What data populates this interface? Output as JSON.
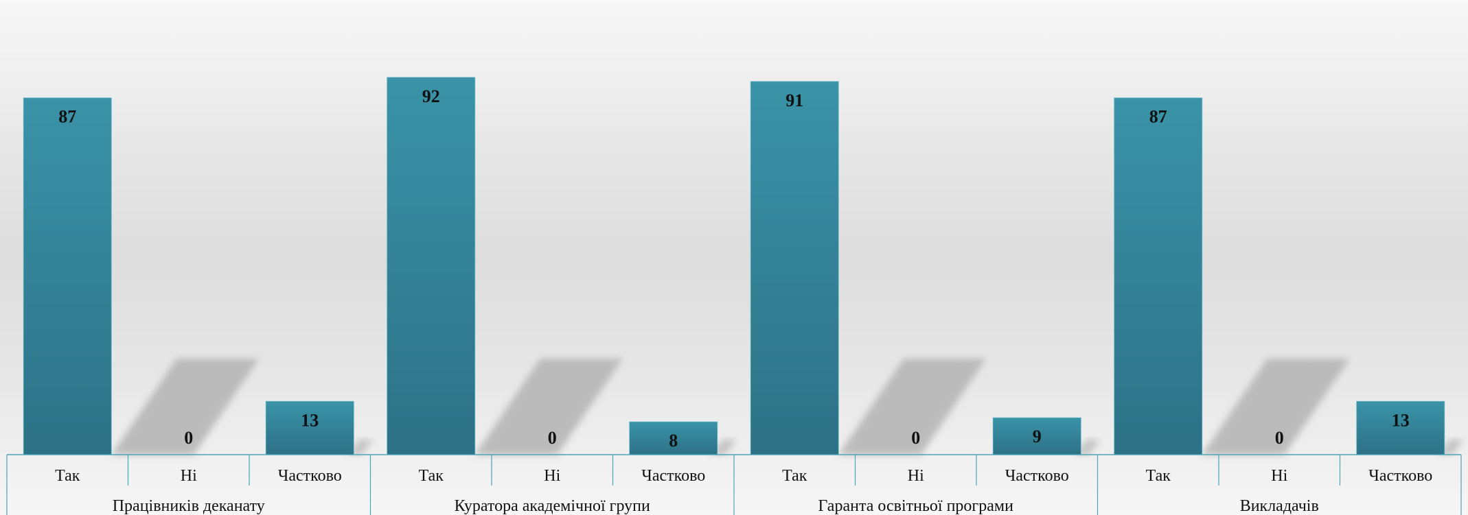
{
  "chart_data": {
    "type": "bar",
    "groups": [
      {
        "label": "Працівників деканату",
        "categories": [
          "Так",
          "Ні",
          "Частково"
        ],
        "values": [
          87,
          0,
          13
        ]
      },
      {
        "label": "Куратора академічної групи",
        "categories": [
          "Так",
          "Ні",
          "Частково"
        ],
        "values": [
          92,
          0,
          8
        ]
      },
      {
        "label": "Гаранта освітньої програми",
        "categories": [
          "Так",
          "Ні",
          "Частково"
        ],
        "values": [
          91,
          0,
          9
        ]
      },
      {
        "label": "Викладачів",
        "categories": [
          "Так",
          "Ні",
          "Частково"
        ],
        "values": [
          87,
          0,
          13
        ]
      }
    ],
    "ylim": [
      0,
      100
    ],
    "grid": false,
    "legend": "none",
    "title": "",
    "xlabel": "",
    "ylabel": ""
  },
  "colors": {
    "bar_top": "#3a93a8",
    "bar_bottom": "#2d7186",
    "axis": "#4aa3b6",
    "shadow": "#b3b3b3"
  }
}
